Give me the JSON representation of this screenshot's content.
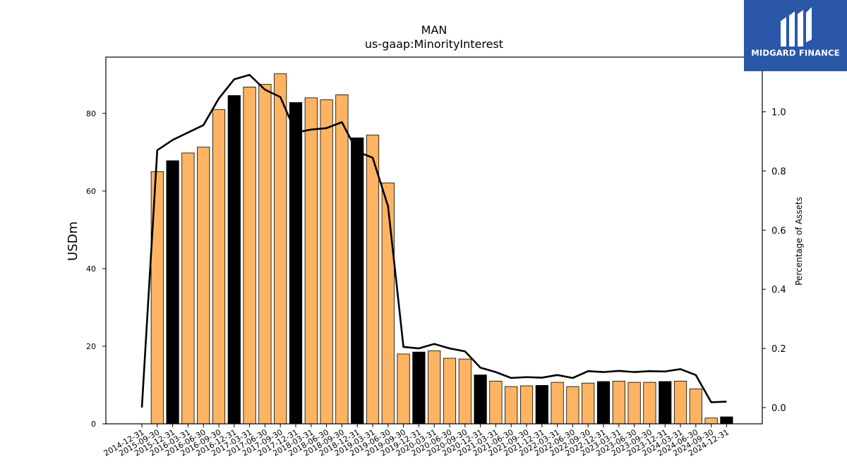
{
  "chart_data": {
    "type": "bar",
    "title": "MAN",
    "subtitle": "us-gaap:MinorityInterest",
    "ylabel": "USDm",
    "y2label": "Percentage of Assets",
    "ylim": [
      0,
      94.5
    ],
    "y2lim": [
      -0.055,
      1.185
    ],
    "yticks": [
      0,
      20,
      40,
      60,
      80
    ],
    "y2ticks": [
      0.0,
      0.2,
      0.4,
      0.6,
      0.8,
      1.0
    ],
    "categories": [
      "2014-12-31",
      "2015-09-30",
      "2015-12-31",
      "2016-03-31",
      "2016-06-30",
      "2016-09-30",
      "2016-12-31",
      "2017-03-31",
      "2017-06-30",
      "2017-09-30",
      "2017-12-31",
      "2018-03-31",
      "2018-06-30",
      "2018-09-30",
      "2018-12-31",
      "2019-03-31",
      "2019-06-30",
      "2019-09-30",
      "2019-12-31",
      "2020-03-31",
      "2020-06-30",
      "2020-09-30",
      "2020-12-31",
      "2021-03-31",
      "2021-06-30",
      "2021-09-30",
      "2021-12-31",
      "2022-03-31",
      "2022-06-30",
      "2022-09-30",
      "2022-12-31",
      "2023-03-31",
      "2023-06-30",
      "2023-09-30",
      "2023-12-31",
      "2024-03-31",
      "2024-06-30",
      "2024-09-30",
      "2024-12-31"
    ],
    "series": [
      {
        "type": "bar",
        "values": [
          0,
          65,
          67.8,
          69.8,
          71.3,
          81,
          84.6,
          86.8,
          87.5,
          90.2,
          82.8,
          84,
          83.5,
          84.8,
          73.7,
          74.4,
          62.1,
          18,
          18.5,
          18.8,
          16.9,
          16.7,
          12.6,
          11,
          9.6,
          9.8,
          9.9,
          10.7,
          9.6,
          10.5,
          10.9,
          11,
          10.7,
          10.7,
          10.9,
          11,
          9,
          1.5,
          1.8
        ],
        "highlight": [
          false,
          false,
          true,
          false,
          false,
          false,
          true,
          false,
          false,
          false,
          true,
          false,
          false,
          false,
          true,
          false,
          false,
          false,
          true,
          false,
          false,
          false,
          true,
          false,
          false,
          false,
          true,
          false,
          false,
          false,
          true,
          false,
          false,
          false,
          true,
          false,
          false,
          false,
          true
        ]
      },
      {
        "type": "line",
        "axis": "right",
        "values": [
          0.0,
          0.87,
          0.905,
          0.93,
          0.955,
          1.045,
          1.11,
          1.125,
          1.075,
          1.05,
          0.93,
          0.94,
          0.945,
          0.965,
          0.865,
          0.845,
          0.68,
          0.205,
          0.2,
          0.215,
          0.2,
          0.19,
          0.135,
          0.12,
          0.1,
          0.103,
          0.101,
          0.11,
          0.1,
          0.123,
          0.12,
          0.124,
          0.12,
          0.123,
          0.122,
          0.13,
          0.11,
          0.018,
          0.02
        ]
      }
    ],
    "colors": {
      "bar": "#fdb462",
      "bar_highlight": "#000000",
      "line": "#000000"
    },
    "grid": false,
    "legend": "none"
  },
  "logo": {
    "text": "MIDGARD FINANCE",
    "background": "#2a57a8"
  }
}
